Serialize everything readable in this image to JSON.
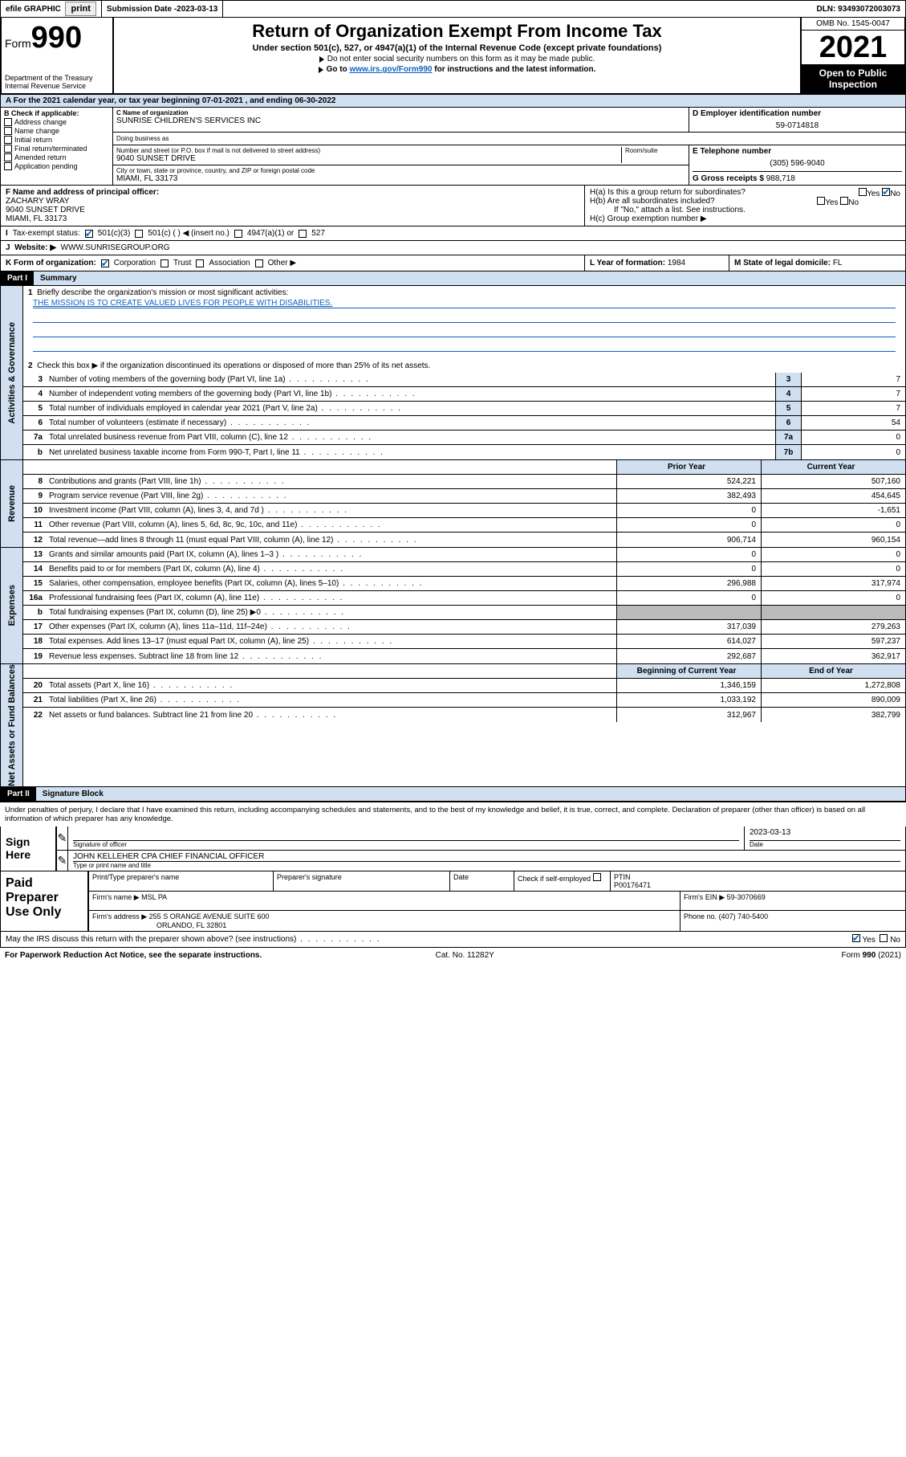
{
  "top": {
    "efile": "efile GRAPHIC",
    "print": "print",
    "sub_label": "Submission Date - ",
    "sub_date": "2023-03-13",
    "dln": "DLN: 93493072003073"
  },
  "header": {
    "form_word": "Form",
    "form_num": "990",
    "dept": "Department of the Treasury",
    "irs": "Internal Revenue Service",
    "title": "Return of Organization Exempt From Income Tax",
    "sub": "Under section 501(c), 527, or 4947(a)(1) of the Internal Revenue Code (except private foundations)",
    "note1": "Do not enter social security numbers on this form as it may be made public.",
    "note2_pre": "Go to ",
    "note2_link": "www.irs.gov/Form990",
    "note2_post": " for instructions and the latest information.",
    "omb": "OMB No. 1545-0047",
    "year": "2021",
    "open": "Open to Public Inspection"
  },
  "rowA": "A For the 2021 calendar year, or tax year beginning 07-01-2021   , and ending 06-30-2022",
  "B": {
    "label": "B Check if applicable:",
    "opts": [
      "Address change",
      "Name change",
      "Initial return",
      "Final return/terminated",
      "Amended return",
      "Application pending"
    ]
  },
  "C": {
    "name_lbl": "C Name of organization",
    "name": "SUNRISE CHILDREN'S SERVICES INC",
    "dba_lbl": "Doing business as",
    "street_lbl": "Number and street (or P.O. box if mail is not delivered to street address)",
    "room_lbl": "Room/suite",
    "street": "9040 SUNSET DRIVE",
    "city_lbl": "City or town, state or province, country, and ZIP or foreign postal code",
    "city": "MIAMI, FL  33173"
  },
  "D": {
    "lbl": "D Employer identification number",
    "val": "59-0714818"
  },
  "E": {
    "lbl": "E Telephone number",
    "val": "(305) 596-9040"
  },
  "G": {
    "lbl": "G Gross receipts $",
    "val": "988,718"
  },
  "F": {
    "lbl": "F Name and address of principal officer:",
    "name": "ZACHARY WRAY",
    "addr1": "9040 SUNSET DRIVE",
    "addr2": "MIAMI, FL  33173"
  },
  "H": {
    "a": "H(a)  Is this a group return for subordinates?",
    "b": "H(b)  Are all subordinates included?",
    "b_note": "If \"No,\" attach a list. See instructions.",
    "c": "H(c)  Group exemption number ▶",
    "yes": "Yes",
    "no": "No"
  },
  "I": {
    "lbl": "Tax-exempt status:",
    "o1": "501(c)(3)",
    "o2": "501(c) (  ) ◀ (insert no.)",
    "o3": "4947(a)(1) or",
    "o4": "527"
  },
  "J": {
    "lbl": "Website: ▶",
    "val": "WWW.SUNRISEGROUP.ORG"
  },
  "K": {
    "lbl": "K Form of organization:",
    "o1": "Corporation",
    "o2": "Trust",
    "o3": "Association",
    "o4": "Other ▶"
  },
  "L": {
    "lbl": "L Year of formation:",
    "val": "1984"
  },
  "M": {
    "lbl": "M State of legal domicile:",
    "val": "FL"
  },
  "part1": {
    "tag": "Part I",
    "title": "Summary"
  },
  "summary": {
    "q1": "Briefly describe the organization's mission or most significant activities:",
    "mission": "THE MISSION IS TO CREATE VALUED LIVES FOR PEOPLE WITH DISABILITIES.",
    "q2": "Check this box ▶       if the organization discontinued its operations or disposed of more than 25% of its net assets.",
    "lines": [
      {
        "n": "3",
        "t": "Number of voting members of the governing body (Part VI, line 1a)",
        "box": "3",
        "v": "7"
      },
      {
        "n": "4",
        "t": "Number of independent voting members of the governing body (Part VI, line 1b)",
        "box": "4",
        "v": "7"
      },
      {
        "n": "5",
        "t": "Total number of individuals employed in calendar year 2021 (Part V, line 2a)",
        "box": "5",
        "v": "7"
      },
      {
        "n": "6",
        "t": "Total number of volunteers (estimate if necessary)",
        "box": "6",
        "v": "54"
      },
      {
        "n": "7a",
        "t": "Total unrelated business revenue from Part VIII, column (C), line 12",
        "box": "7a",
        "v": "0"
      },
      {
        "n": "b",
        "t": "Net unrelated business taxable income from Form 990-T, Part I, line 11",
        "box": "7b",
        "v": "0"
      }
    ]
  },
  "cols": {
    "prior": "Prior Year",
    "curr": "Current Year"
  },
  "revenue": [
    {
      "n": "8",
      "t": "Contributions and grants (Part VIII, line 1h)",
      "p": "524,221",
      "c": "507,160"
    },
    {
      "n": "9",
      "t": "Program service revenue (Part VIII, line 2g)",
      "p": "382,493",
      "c": "454,645"
    },
    {
      "n": "10",
      "t": "Investment income (Part VIII, column (A), lines 3, 4, and 7d )",
      "p": "0",
      "c": "-1,651"
    },
    {
      "n": "11",
      "t": "Other revenue (Part VIII, column (A), lines 5, 6d, 8c, 9c, 10c, and 11e)",
      "p": "0",
      "c": "0"
    },
    {
      "n": "12",
      "t": "Total revenue—add lines 8 through 11 (must equal Part VIII, column (A), line 12)",
      "p": "906,714",
      "c": "960,154"
    }
  ],
  "expenses": [
    {
      "n": "13",
      "t": "Grants and similar amounts paid (Part IX, column (A), lines 1–3 )",
      "p": "0",
      "c": "0"
    },
    {
      "n": "14",
      "t": "Benefits paid to or for members (Part IX, column (A), line 4)",
      "p": "0",
      "c": "0"
    },
    {
      "n": "15",
      "t": "Salaries, other compensation, employee benefits (Part IX, column (A), lines 5–10)",
      "p": "296,988",
      "c": "317,974"
    },
    {
      "n": "16a",
      "t": "Professional fundraising fees (Part IX, column (A), line 11e)",
      "p": "0",
      "c": "0"
    },
    {
      "n": "b",
      "t": "Total fundraising expenses (Part IX, column (D), line 25) ▶0",
      "p": "",
      "c": "",
      "shade": true
    },
    {
      "n": "17",
      "t": "Other expenses (Part IX, column (A), lines 11a–11d, 11f–24e)",
      "p": "317,039",
      "c": "279,263"
    },
    {
      "n": "18",
      "t": "Total expenses. Add lines 13–17 (must equal Part IX, column (A), line 25)",
      "p": "614,027",
      "c": "597,237"
    },
    {
      "n": "19",
      "t": "Revenue less expenses. Subtract line 18 from line 12",
      "p": "292,687",
      "c": "362,917"
    }
  ],
  "cols2": {
    "beg": "Beginning of Current Year",
    "end": "End of Year"
  },
  "netassets": [
    {
      "n": "20",
      "t": "Total assets (Part X, line 16)",
      "p": "1,346,159",
      "c": "1,272,808"
    },
    {
      "n": "21",
      "t": "Total liabilities (Part X, line 26)",
      "p": "1,033,192",
      "c": "890,009"
    },
    {
      "n": "22",
      "t": "Net assets or fund balances. Subtract line 21 from line 20",
      "p": "312,967",
      "c": "382,799"
    }
  ],
  "sides": {
    "gov": "Activities & Governance",
    "rev": "Revenue",
    "exp": "Expenses",
    "net": "Net Assets or Fund Balances"
  },
  "part2": {
    "tag": "Part II",
    "title": "Signature Block"
  },
  "sig": {
    "intro": "Under penalties of perjury, I declare that I have examined this return, including accompanying schedules and statements, and to the best of my knowledge and belief, it is true, correct, and complete. Declaration of preparer (other than officer) is based on all information of which preparer has any knowledge.",
    "sign_here": "Sign Here",
    "sig_of": "Signature of officer",
    "date_lbl": "Date",
    "date": "2023-03-13",
    "officer": "JOHN KELLEHER CPA  CHIEF FINANCIAL OFFICER",
    "type_name": "Type or print name and title"
  },
  "prep": {
    "title": "Paid Preparer Use Only",
    "print_name_lbl": "Print/Type preparer's name",
    "prep_sig_lbl": "Preparer's signature",
    "date_lbl": "Date",
    "check_lbl": "Check          if self-employed",
    "ptin_lbl": "PTIN",
    "ptin": "P00176471",
    "firm_name_lbl": "Firm's name    ▶",
    "firm_name": "MSL PA",
    "firm_ein_lbl": "Firm's EIN ▶",
    "firm_ein": "59-3070669",
    "firm_addr_lbl": "Firm's address ▶",
    "firm_addr1": "255 S ORANGE AVENUE SUITE 600",
    "firm_addr2": "ORLANDO, FL  32801",
    "phone_lbl": "Phone no.",
    "phone": "(407) 740-5400"
  },
  "may": {
    "q": "May the IRS discuss this return with the preparer shown above? (see instructions)",
    "yes": "Yes",
    "no": "No"
  },
  "footer": {
    "l": "For Paperwork Reduction Act Notice, see the separate instructions.",
    "m": "Cat. No. 11282Y",
    "r": "Form 990 (2021)"
  }
}
